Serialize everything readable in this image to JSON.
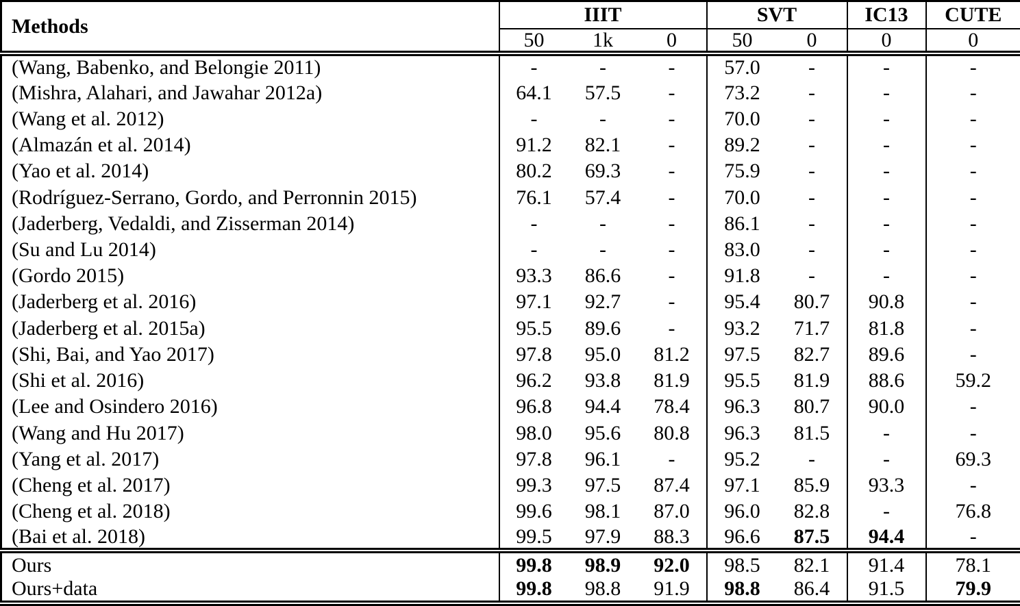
{
  "page": {
    "background_color": "#ffffff",
    "text_color": "#000000",
    "border_color": "#000000"
  },
  "table": {
    "methods_header": "Methods",
    "column_groups": [
      {
        "label": "IIIT",
        "subcolumns": [
          "50",
          "1k",
          "0"
        ]
      },
      {
        "label": "SVT",
        "subcolumns": [
          "50",
          "0"
        ]
      },
      {
        "label": "IC13",
        "subcolumns": [
          "0"
        ]
      },
      {
        "label": "CUTE",
        "subcolumns": [
          "0"
        ]
      }
    ],
    "body_rows": [
      {
        "method": "(Wang, Babenko, and Belongie 2011)",
        "values": [
          "-",
          "-",
          "-",
          "57.0",
          "-",
          "-",
          "-"
        ],
        "bold_values": []
      },
      {
        "method": "(Mishra, Alahari, and Jawahar 2012a)",
        "values": [
          "64.1",
          "57.5",
          "-",
          "73.2",
          "-",
          "-",
          "-"
        ],
        "bold_values": []
      },
      {
        "method": "(Wang et al. 2012)",
        "values": [
          "-",
          "-",
          "-",
          "70.0",
          "-",
          "-",
          "-"
        ],
        "bold_values": []
      },
      {
        "method": "(Almazán et al. 2014)",
        "values": [
          "91.2",
          "82.1",
          "-",
          "89.2",
          "-",
          "-",
          "-"
        ],
        "bold_values": []
      },
      {
        "method": "(Yao et al. 2014)",
        "values": [
          "80.2",
          "69.3",
          "-",
          "75.9",
          "-",
          "-",
          "-"
        ],
        "bold_values": []
      },
      {
        "method": "(Rodríguez-Serrano, Gordo, and Perronnin 2015)",
        "values": [
          "76.1",
          "57.4",
          "-",
          "70.0",
          "-",
          "-",
          "-"
        ],
        "bold_values": []
      },
      {
        "method": "(Jaderberg, Vedaldi, and Zisserman 2014)",
        "values": [
          "-",
          "-",
          "-",
          "86.1",
          "-",
          "-",
          "-"
        ],
        "bold_values": []
      },
      {
        "method": "(Su and Lu 2014)",
        "values": [
          "-",
          "-",
          "-",
          "83.0",
          "-",
          "-",
          "-"
        ],
        "bold_values": []
      },
      {
        "method": "(Gordo 2015)",
        "values": [
          "93.3",
          "86.6",
          "-",
          "91.8",
          "-",
          "-",
          "-"
        ],
        "bold_values": []
      },
      {
        "method": "(Jaderberg et al. 2016)",
        "values": [
          "97.1",
          "92.7",
          "-",
          "95.4",
          "80.7",
          "90.8",
          "-"
        ],
        "bold_values": []
      },
      {
        "method": "(Jaderberg et al. 2015a)",
        "values": [
          "95.5",
          "89.6",
          "-",
          "93.2",
          "71.7",
          "81.8",
          "-"
        ],
        "bold_values": []
      },
      {
        "method": "(Shi, Bai, and Yao 2017)",
        "values": [
          "97.8",
          "95.0",
          "81.2",
          "97.5",
          "82.7",
          "89.6",
          "-"
        ],
        "bold_values": []
      },
      {
        "method": "(Shi et al. 2016)",
        "values": [
          "96.2",
          "93.8",
          "81.9",
          "95.5",
          "81.9",
          "88.6",
          "59.2"
        ],
        "bold_values": []
      },
      {
        "method": "(Lee and Osindero 2016)",
        "values": [
          "96.8",
          "94.4",
          "78.4",
          "96.3",
          "80.7",
          "90.0",
          "-"
        ],
        "bold_values": []
      },
      {
        "method": "(Wang and Hu 2017)",
        "values": [
          "98.0",
          "95.6",
          "80.8",
          "96.3",
          "81.5",
          "-",
          "-"
        ],
        "bold_values": []
      },
      {
        "method": "(Yang et al. 2017)",
        "values": [
          "97.8",
          "96.1",
          "-",
          "95.2",
          "-",
          "-",
          "69.3"
        ],
        "bold_values": []
      },
      {
        "method": "(Cheng et al. 2017)",
        "values": [
          "99.3",
          "97.5",
          "87.4",
          "97.1",
          "85.9",
          "93.3",
          "-"
        ],
        "bold_values": []
      },
      {
        "method": "(Cheng et al. 2018)",
        "values": [
          "99.6",
          "98.1",
          "87.0",
          "96.0",
          "82.8",
          "-",
          "76.8"
        ],
        "bold_values": []
      },
      {
        "method": "(Bai et al. 2018)",
        "values": [
          "99.5",
          "97.9",
          "88.3",
          "96.6",
          "87.5",
          "94.4",
          "-"
        ],
        "bold_values": [
          4,
          5
        ]
      }
    ],
    "ours_rows": [
      {
        "method": "Ours",
        "values": [
          "99.8",
          "98.9",
          "92.0",
          "98.5",
          "82.1",
          "91.4",
          "78.1"
        ],
        "bold_values": [
          0,
          1,
          2
        ]
      },
      {
        "method": "Ours+data",
        "values": [
          "99.8",
          "98.8",
          "91.9",
          "98.8",
          "86.4",
          "91.5",
          "79.9"
        ],
        "bold_values": [
          0,
          3,
          6
        ]
      }
    ]
  }
}
